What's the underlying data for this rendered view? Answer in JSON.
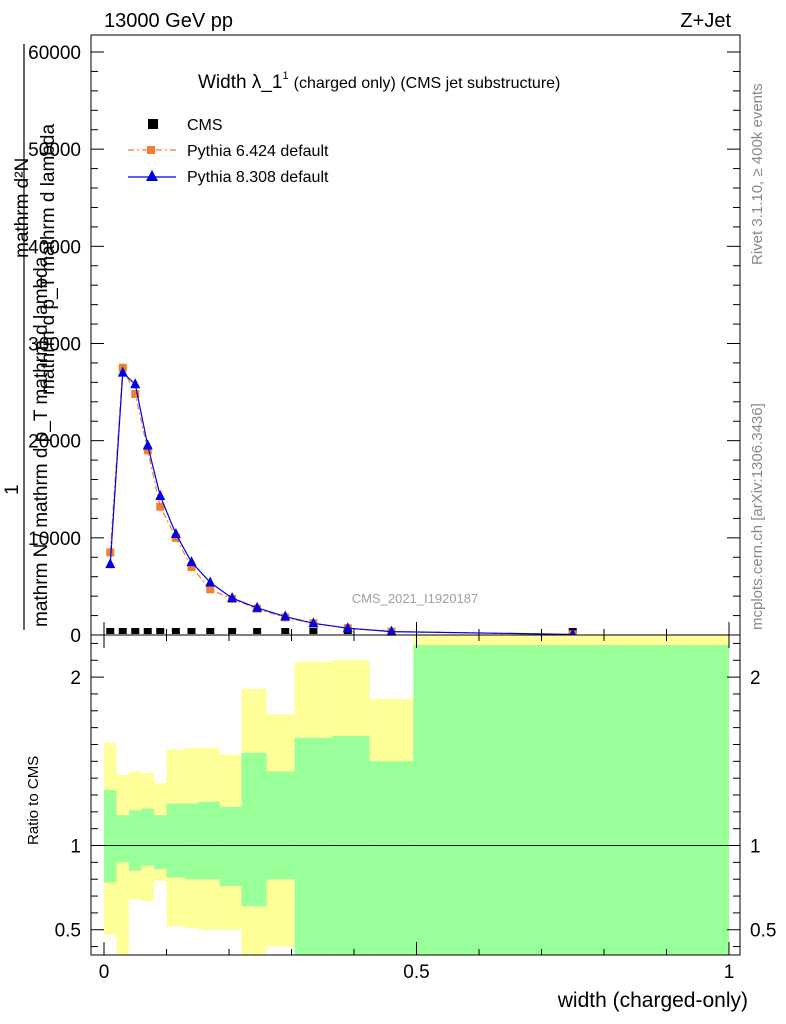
{
  "header": {
    "left": "13000 GeV pp",
    "right": "Z+Jet"
  },
  "side_labels": {
    "rivet": "Rivet 3.1.10, ≥ 400k events",
    "mcplots": "mcplots.cern.ch [arXiv:1306.3436]"
  },
  "watermark": "CMS_2021_I1920187",
  "colors": {
    "cms": "#000000",
    "pythia6": "#f07f30",
    "pythia8": "#0000e0",
    "band_inner": "#99ff99",
    "band_outer": "#ffff99"
  },
  "chart_data": [
    {
      "type": "line",
      "title_main": "Width λ_1",
      "title_sup": "1",
      "title_rest": "(charged only) (CMS jet substructure)",
      "ylabel_top": "mathrm d²N",
      "ylabel_one": "1",
      "ylabel_den": "mathrm N / mathrm d p_T mathrm d lambda",
      "ylabel_den2": "mathrm d p_T mathrm d lambda",
      "xlim": [
        0,
        1
      ],
      "ylim": [
        0,
        60000
      ],
      "yticks": [
        {
          "v": 0,
          "label": "0"
        },
        {
          "v": 10000,
          "label": "10000"
        },
        {
          "v": 20000,
          "label": "20000"
        },
        {
          "v": 30000,
          "label": "30000"
        },
        {
          "v": 40000,
          "label": "40000"
        },
        {
          "v": 50000,
          "label": "50000"
        },
        {
          "v": 60000,
          "label": "60000"
        }
      ],
      "legend": [
        {
          "key": "cms",
          "label": "CMS"
        },
        {
          "key": "pythia6",
          "label": "Pythia 6.424 default"
        },
        {
          "key": "pythia8",
          "label": "Pythia 8.308 default"
        }
      ],
      "series": [
        {
          "name": "CMS",
          "x": [
            0.01,
            0.03,
            0.05,
            0.07,
            0.09,
            0.115,
            0.14,
            0.17,
            0.205,
            0.245,
            0.29,
            0.335,
            0.39,
            0.46,
            0.75
          ],
          "y": [
            100,
            100,
            100,
            100,
            100,
            100,
            100,
            100,
            100,
            100,
            100,
            100,
            100,
            100,
            100
          ]
        },
        {
          "name": "Pythia 6.424 default",
          "x": [
            0.01,
            0.03,
            0.05,
            0.07,
            0.09,
            0.115,
            0.14,
            0.17,
            0.205,
            0.245,
            0.29,
            0.335,
            0.39,
            0.46,
            0.75
          ],
          "y": [
            8500,
            27500,
            24800,
            19000,
            13200,
            10000,
            7000,
            4700,
            3700,
            2700,
            1800,
            1200,
            700,
            350,
            60
          ]
        },
        {
          "name": "Pythia 8.308 default",
          "x": [
            0.01,
            0.03,
            0.05,
            0.07,
            0.09,
            0.115,
            0.14,
            0.17,
            0.205,
            0.245,
            0.29,
            0.335,
            0.39,
            0.46,
            0.75
          ],
          "y": [
            7300,
            27000,
            25800,
            19500,
            14300,
            10400,
            7500,
            5400,
            3800,
            2800,
            1900,
            1200,
            700,
            350,
            60
          ]
        }
      ]
    },
    {
      "type": "area",
      "ylabel": "Ratio to CMS",
      "xlabel": "width (charged-only)",
      "xlim": [
        0,
        1
      ],
      "ylim": [
        0.35,
        2.25
      ],
      "yticks": [
        {
          "v": 0.5,
          "label": "0.5"
        },
        {
          "v": 1,
          "label": "1"
        },
        {
          "v": 2,
          "label": "2"
        }
      ],
      "xticks": [
        {
          "v": 0,
          "label": "0"
        },
        {
          "v": 0.5,
          "label": "0.5"
        },
        {
          "v": 1,
          "label": "1"
        }
      ],
      "bins": [
        {
          "lo": 0.0,
          "hi": 0.02,
          "in_lo": 0.78,
          "in_hi": 1.33,
          "out_lo": 0.47,
          "out_hi": 1.61
        },
        {
          "lo": 0.02,
          "hi": 0.04,
          "in_lo": 0.9,
          "in_hi": 1.18,
          "out_lo": 0.35,
          "out_hi": 1.42
        },
        {
          "lo": 0.04,
          "hi": 0.06,
          "in_lo": 0.85,
          "in_hi": 1.21,
          "out_lo": 0.68,
          "out_hi": 1.44
        },
        {
          "lo": 0.06,
          "hi": 0.08,
          "in_lo": 0.88,
          "in_hi": 1.22,
          "out_lo": 0.67,
          "out_hi": 1.43
        },
        {
          "lo": 0.08,
          "hi": 0.1,
          "in_lo": 0.86,
          "in_hi": 1.18,
          "out_lo": 0.79,
          "out_hi": 1.37
        },
        {
          "lo": 0.1,
          "hi": 0.13,
          "in_lo": 0.81,
          "in_hi": 1.25,
          "out_lo": 0.52,
          "out_hi": 1.57
        },
        {
          "lo": 0.13,
          "hi": 0.15,
          "in_lo": 0.8,
          "in_hi": 1.25,
          "out_lo": 0.51,
          "out_hi": 1.58
        },
        {
          "lo": 0.15,
          "hi": 0.185,
          "in_lo": 0.8,
          "in_hi": 1.26,
          "out_lo": 0.5,
          "out_hi": 1.58
        },
        {
          "lo": 0.185,
          "hi": 0.22,
          "in_lo": 0.76,
          "in_hi": 1.23,
          "out_lo": 0.5,
          "out_hi": 1.54
        },
        {
          "lo": 0.22,
          "hi": 0.26,
          "in_lo": 0.64,
          "in_hi": 1.55,
          "out_lo": 0.35,
          "out_hi": 1.93
        },
        {
          "lo": 0.26,
          "hi": 0.305,
          "in_lo": 0.8,
          "in_hi": 1.44,
          "out_lo": 0.4,
          "out_hi": 1.78
        },
        {
          "lo": 0.305,
          "hi": 0.365,
          "in_lo": 0.35,
          "in_hi": 1.64,
          "out_lo": 0.41,
          "out_hi": 2.09
        },
        {
          "lo": 0.365,
          "hi": 0.425,
          "in_lo": 0.35,
          "in_hi": 1.65,
          "out_lo": 0.4,
          "out_hi": 2.1
        },
        {
          "lo": 0.425,
          "hi": 0.495,
          "in_lo": 0.35,
          "in_hi": 1.5,
          "out_lo": 0.62,
          "out_hi": 1.87
        },
        {
          "lo": 0.495,
          "hi": 1.0,
          "in_lo": 0.35,
          "in_hi": 2.19,
          "out_lo": 0.35,
          "out_hi": 2.25
        }
      ]
    }
  ]
}
